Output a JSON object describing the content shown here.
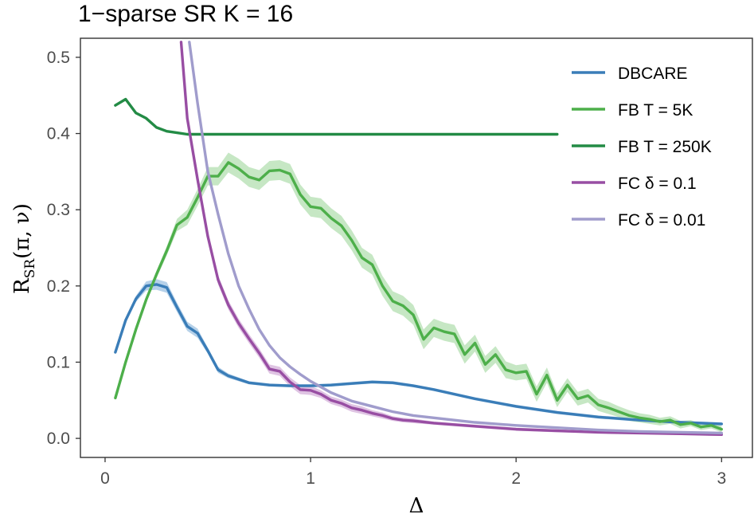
{
  "chart_data": {
    "type": "line",
    "title": "1−sparse SR K = 16",
    "xlabel": "Δ",
    "ylabel": {
      "main": "R",
      "subscript": "SR",
      "args": "(π, ν)"
    },
    "xlim": [
      -0.12,
      3.15
    ],
    "ylim": [
      -0.025,
      0.525
    ],
    "x_ticks": [
      0,
      1,
      2,
      3
    ],
    "x_tick_labels": [
      "0",
      "1",
      "2",
      "3"
    ],
    "y_ticks": [
      0.0,
      0.1,
      0.2,
      0.3,
      0.4,
      0.5
    ],
    "y_tick_labels": [
      "0.0",
      "0.1",
      "0.2",
      "0.3",
      "0.4",
      "0.5"
    ],
    "legend_position": "top-right",
    "series": [
      {
        "name": "DBCARE",
        "color": "#3a7db8",
        "band_color": "#9ec2e2",
        "x": [
          0.05,
          0.1,
          0.15,
          0.2,
          0.25,
          0.3,
          0.35,
          0.4,
          0.45,
          0.5,
          0.55,
          0.6,
          0.7,
          0.8,
          0.9,
          1.0,
          1.1,
          1.2,
          1.3,
          1.4,
          1.5,
          1.6,
          1.8,
          2.0,
          2.2,
          2.4,
          2.6,
          2.8,
          3.0
        ],
        "values": [
          0.113,
          0.155,
          0.183,
          0.2,
          0.202,
          0.198,
          0.172,
          0.147,
          0.138,
          0.115,
          0.09,
          0.082,
          0.073,
          0.07,
          0.069,
          0.069,
          0.07,
          0.072,
          0.074,
          0.073,
          0.069,
          0.064,
          0.052,
          0.042,
          0.034,
          0.028,
          0.024,
          0.021,
          0.019
        ],
        "band": [
          0.003,
          0.003,
          0.004,
          0.006,
          0.007,
          0.007,
          0.006,
          0.006,
          0.006,
          0.004,
          0.004,
          0.003,
          0.002,
          0.002,
          0.002,
          0.002,
          0.002,
          0.002,
          0.002,
          0.002,
          0.002,
          0.002,
          0.002,
          0.002,
          0.002,
          0.002,
          0.002,
          0.002,
          0.002
        ]
      },
      {
        "name": "FB T = 5K",
        "color": "#4daf4a",
        "band_color": "#b3dfb0",
        "x": [
          0.05,
          0.1,
          0.15,
          0.2,
          0.25,
          0.3,
          0.35,
          0.4,
          0.45,
          0.5,
          0.55,
          0.6,
          0.65,
          0.7,
          0.75,
          0.8,
          0.85,
          0.9,
          0.95,
          1.0,
          1.05,
          1.1,
          1.15,
          1.2,
          1.25,
          1.3,
          1.35,
          1.4,
          1.45,
          1.5,
          1.55,
          1.6,
          1.65,
          1.7,
          1.75,
          1.8,
          1.85,
          1.9,
          1.95,
          2.0,
          2.05,
          2.1,
          2.15,
          2.2,
          2.25,
          2.3,
          2.35,
          2.4,
          2.45,
          2.5,
          2.55,
          2.6,
          2.65,
          2.7,
          2.75,
          2.8,
          2.85,
          2.9,
          2.95,
          3.0
        ],
        "values": [
          0.053,
          0.1,
          0.143,
          0.182,
          0.215,
          0.246,
          0.28,
          0.29,
          0.316,
          0.344,
          0.344,
          0.362,
          0.354,
          0.343,
          0.339,
          0.351,
          0.352,
          0.347,
          0.32,
          0.304,
          0.302,
          0.289,
          0.279,
          0.26,
          0.237,
          0.228,
          0.2,
          0.18,
          0.174,
          0.162,
          0.13,
          0.145,
          0.14,
          0.137,
          0.11,
          0.125,
          0.097,
          0.11,
          0.09,
          0.086,
          0.088,
          0.058,
          0.083,
          0.05,
          0.07,
          0.052,
          0.056,
          0.044,
          0.04,
          0.035,
          0.03,
          0.027,
          0.025,
          0.022,
          0.024,
          0.018,
          0.02,
          0.015,
          0.017,
          0.012
        ],
        "band": [
          0.002,
          0.002,
          0.003,
          0.004,
          0.005,
          0.006,
          0.008,
          0.01,
          0.011,
          0.012,
          0.012,
          0.013,
          0.013,
          0.013,
          0.013,
          0.013,
          0.013,
          0.013,
          0.013,
          0.013,
          0.013,
          0.013,
          0.013,
          0.013,
          0.013,
          0.013,
          0.013,
          0.013,
          0.013,
          0.013,
          0.013,
          0.012,
          0.012,
          0.012,
          0.012,
          0.011,
          0.011,
          0.011,
          0.011,
          0.01,
          0.01,
          0.01,
          0.01,
          0.009,
          0.009,
          0.009,
          0.009,
          0.008,
          0.008,
          0.007,
          0.007,
          0.006,
          0.006,
          0.005,
          0.005,
          0.005,
          0.004,
          0.004,
          0.004,
          0.004
        ]
      },
      {
        "name": "FB T = 250K",
        "color": "#238b45",
        "band_color": "#238b45",
        "x": [
          0.05,
          0.1,
          0.15,
          0.2,
          0.25,
          0.3,
          0.35,
          0.4,
          0.45,
          0.5,
          1.0,
          1.5,
          2.0,
          2.2
        ],
        "values": [
          0.437,
          0.445,
          0.427,
          0.42,
          0.408,
          0.403,
          0.401,
          0.399,
          0.399,
          0.399,
          0.399,
          0.399,
          0.399,
          0.399
        ],
        "band": [
          0,
          0,
          0,
          0,
          0,
          0,
          0,
          0,
          0,
          0,
          0,
          0,
          0,
          0
        ]
      },
      {
        "name": "FC δ = 0.1",
        "color": "#984ea3",
        "band_color": "#d4b0da",
        "x": [
          0.37,
          0.4,
          0.45,
          0.5,
          0.55,
          0.6,
          0.65,
          0.7,
          0.75,
          0.8,
          0.85,
          0.9,
          0.95,
          1.0,
          1.05,
          1.1,
          1.15,
          1.2,
          1.25,
          1.3,
          1.35,
          1.4,
          1.45,
          1.5,
          1.6,
          1.8,
          2.0,
          2.2,
          2.4,
          2.6,
          2.8,
          3.0
        ],
        "values": [
          0.52,
          0.42,
          0.34,
          0.265,
          0.208,
          0.175,
          0.151,
          0.131,
          0.112,
          0.091,
          0.088,
          0.074,
          0.064,
          0.063,
          0.058,
          0.05,
          0.046,
          0.04,
          0.037,
          0.033,
          0.03,
          0.026,
          0.024,
          0.023,
          0.02,
          0.016,
          0.012,
          0.01,
          0.008,
          0.007,
          0.006,
          0.005
        ],
        "band": [
          0.003,
          0.004,
          0.005,
          0.006,
          0.006,
          0.006,
          0.006,
          0.006,
          0.006,
          0.006,
          0.006,
          0.006,
          0.006,
          0.006,
          0.005,
          0.005,
          0.005,
          0.005,
          0.005,
          0.004,
          0.004,
          0.003,
          0.003,
          0.003,
          0.002,
          0.002,
          0.002,
          0.002,
          0.001,
          0.001,
          0.001,
          0.001
        ]
      },
      {
        "name": "FC δ = 0.01",
        "color": "#a09ccc",
        "band_color": "#d7d4ec",
        "x": [
          0.41,
          0.45,
          0.5,
          0.55,
          0.6,
          0.65,
          0.7,
          0.75,
          0.8,
          0.85,
          0.9,
          0.95,
          1.0,
          1.1,
          1.2,
          1.3,
          1.4,
          1.5,
          1.6,
          1.8,
          2.0,
          2.2,
          2.4,
          2.6,
          2.8,
          3.0
        ],
        "values": [
          0.52,
          0.44,
          0.35,
          0.294,
          0.242,
          0.2,
          0.17,
          0.143,
          0.122,
          0.106,
          0.094,
          0.084,
          0.075,
          0.06,
          0.049,
          0.042,
          0.035,
          0.03,
          0.027,
          0.021,
          0.017,
          0.014,
          0.011,
          0.009,
          0.008,
          0.007
        ],
        "band": [
          0.002,
          0.002,
          0.003,
          0.003,
          0.003,
          0.003,
          0.003,
          0.003,
          0.002,
          0.002,
          0.002,
          0.002,
          0.002,
          0.002,
          0.002,
          0.002,
          0.001,
          0.001,
          0.001,
          0.001,
          0.001,
          0.001,
          0.001,
          0.001,
          0.001,
          0.001
        ]
      }
    ]
  }
}
